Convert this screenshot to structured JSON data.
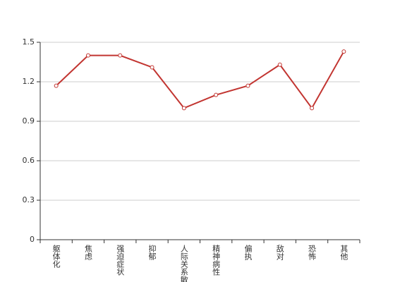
{
  "chart_data": {
    "type": "line",
    "categories": [
      "躯体化",
      "焦虑",
      "强迫症状",
      "抑郁",
      "人际关系敏感",
      "精神病性",
      "偏执",
      "敌对",
      "恐怖",
      "其他"
    ],
    "values": [
      1.17,
      1.4,
      1.4,
      1.31,
      1.0,
      1.1,
      1.17,
      1.33,
      1.0,
      1.43
    ],
    "color": "#c23531",
    "ylim": [
      0,
      1.5
    ],
    "yticks": [
      0,
      0.3,
      0.6,
      0.9,
      1.2,
      1.5
    ],
    "grid": true
  }
}
